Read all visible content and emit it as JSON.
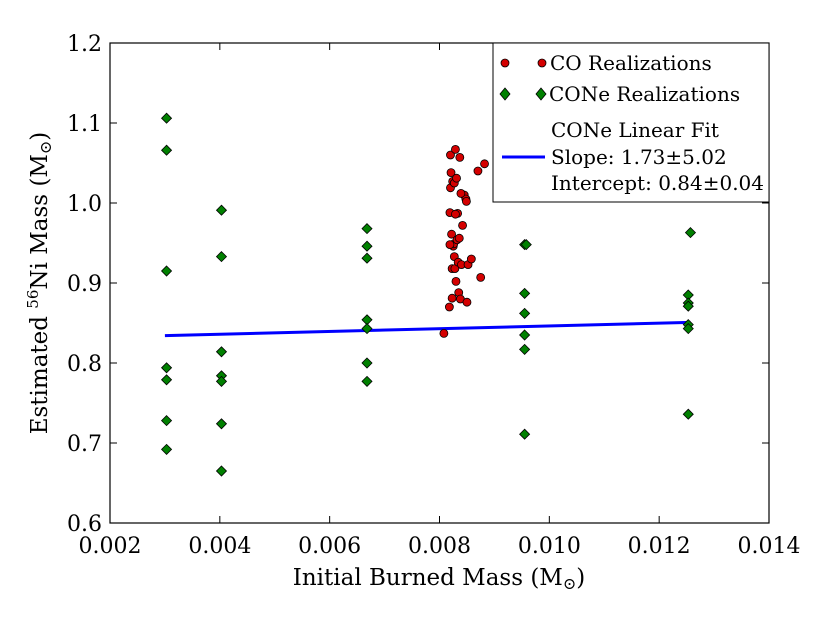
{
  "chart_data": {
    "type": "scatter",
    "title": "",
    "xlabel": "Initial Burned Mass (M",
    "xlabel_suffix": ")",
    "ylabel_prefix": "Estimated ",
    "ylabel_sup": "56",
    "ylabel_mid": "Ni Mass (M",
    "ylabel_suffix": ")",
    "sun_symbol": "⊙",
    "xlim": [
      0.002,
      0.014
    ],
    "ylim": [
      0.6,
      1.2
    ],
    "xticks": [
      0.002,
      0.004,
      0.006,
      0.008,
      0.01,
      0.012,
      0.014
    ],
    "xtick_labels": [
      "0.002",
      "0.004",
      "0.006",
      "0.008",
      "0.010",
      "0.012",
      "0.014"
    ],
    "yticks": [
      0.6,
      0.7,
      0.8,
      0.9,
      1.0,
      1.1,
      1.2
    ],
    "ytick_labels": [
      "0.6",
      "0.7",
      "0.8",
      "0.9",
      "1.0",
      "1.1",
      "1.2"
    ],
    "grid": false,
    "legend_position": "top-right",
    "series": [
      {
        "name": "CO Realizations",
        "marker": "circle",
        "color": "#d40000",
        "x": [
          0.00808,
          0.00818,
          0.00819,
          0.0082,
          0.0082,
          0.00821,
          0.00822,
          0.00823,
          0.00824,
          0.00825,
          0.00826,
          0.00827,
          0.00827,
          0.00828,
          0.00829,
          0.0083,
          0.00831,
          0.00832,
          0.00833,
          0.00834,
          0.00835,
          0.00836,
          0.00837,
          0.00838,
          0.0084,
          0.00842,
          0.00845,
          0.00848,
          0.0085,
          0.00852,
          0.00858,
          0.0087,
          0.00875,
          0.00882,
          0.00819,
          0.00823,
          0.00829,
          0.00839,
          0.00849
        ],
        "y": [
          0.837,
          0.87,
          0.988,
          1.06,
          1.019,
          1.038,
          0.961,
          0.918,
          1.027,
          0.946,
          0.949,
          0.933,
          1.025,
          0.918,
          1.067,
          0.902,
          1.031,
          0.954,
          0.987,
          0.926,
          0.888,
          0.956,
          1.057,
          0.88,
          0.923,
          0.972,
          1.01,
          1.005,
          0.876,
          0.923,
          0.93,
          1.04,
          0.907,
          1.049,
          0.948,
          0.881,
          0.986,
          1.012,
          1.002
        ]
      },
      {
        "name": "CONe Realizations",
        "marker": "diamond",
        "color": "#008000",
        "x": [
          0.00303,
          0.00303,
          0.00303,
          0.00303,
          0.00303,
          0.00303,
          0.00303,
          0.00403,
          0.00403,
          0.00403,
          0.00403,
          0.00403,
          0.00403,
          0.00403,
          0.00668,
          0.00668,
          0.00668,
          0.00668,
          0.00668,
          0.00668,
          0.00668,
          0.00955,
          0.00958,
          0.00955,
          0.00955,
          0.00955,
          0.00955,
          0.00955,
          0.01253,
          0.01253,
          0.01253,
          0.01253,
          0.01253,
          0.01253,
          0.01257
        ],
        "y": [
          1.106,
          1.066,
          0.915,
          0.794,
          0.779,
          0.728,
          0.692,
          0.991,
          0.933,
          0.814,
          0.784,
          0.777,
          0.724,
          0.665,
          0.968,
          0.946,
          0.931,
          0.854,
          0.843,
          0.8,
          0.777,
          0.948,
          0.948,
          0.887,
          0.862,
          0.835,
          0.817,
          0.711,
          0.885,
          0.875,
          0.871,
          0.848,
          0.843,
          0.736,
          0.963
        ]
      },
      {
        "name": "CONe Linear Fit",
        "marker": "line",
        "color": "#0000ff",
        "slope": 1.73,
        "intercept": 0.842,
        "x_range": [
          0.003,
          0.01257
        ]
      }
    ],
    "legend": {
      "co_label": "CO Realizations",
      "cone_label": "CONe Realizations",
      "fit_label": "CONe Linear Fit",
      "fit_slope": "Slope: 1.73±5.02",
      "fit_intercept": "Intercept: 0.84±0.04"
    }
  }
}
